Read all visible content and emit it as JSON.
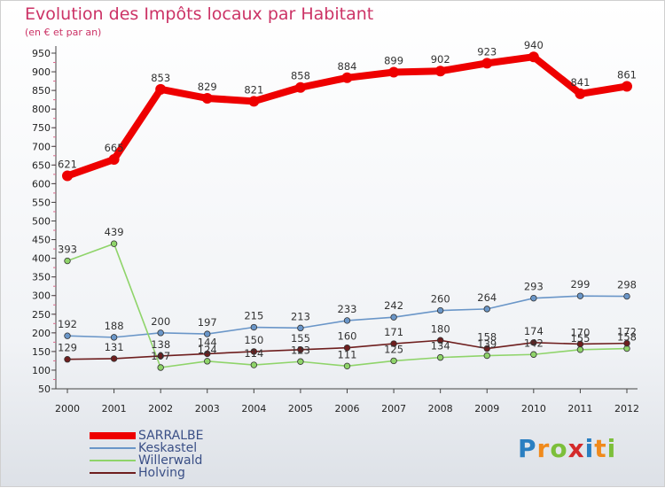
{
  "header": {
    "title": "Evolution des Impôts locaux par Habitant",
    "subtitle": "(en € et par an)"
  },
  "brand": {
    "text": "Proxiti",
    "letters": [
      "P",
      "r",
      "o",
      "x",
      "i",
      "t",
      "i"
    ],
    "letter_colors": [
      "#2a7fc1",
      "#f08a1c",
      "#7cbf3a",
      "#d42a2a",
      "#2a7fc1",
      "#f08a1c",
      "#7cbf3a"
    ]
  },
  "chart_data": {
    "type": "line",
    "title": "Evolution des Impôts locaux par Habitant",
    "subtitle": "(en € et par an)",
    "xlabel": "",
    "ylabel": "",
    "x": [
      "2000",
      "2001",
      "2002",
      "2003",
      "2004",
      "2005",
      "2006",
      "2007",
      "2008",
      "2009",
      "2010",
      "2011",
      "2012"
    ],
    "ylim": [
      50,
      950
    ],
    "yticks": [
      50,
      100,
      150,
      200,
      250,
      300,
      350,
      400,
      450,
      500,
      550,
      600,
      650,
      700,
      750,
      800,
      850,
      900,
      950
    ],
    "grid": false,
    "legend_position": "bottom-left",
    "series": [
      {
        "name": "SARRALBE",
        "color": "#ee0000",
        "width": "thick",
        "values": [
          621,
          665,
          853,
          829,
          821,
          858,
          884,
          899,
          902,
          923,
          940,
          841,
          861
        ],
        "labels": [
          "621",
          "665",
          "853",
          "829",
          "821",
          "858",
          "884",
          "899",
          "902",
          "923",
          "940",
          "841",
          "861"
        ]
      },
      {
        "name": "Keskastel",
        "color": "#6a96c8",
        "width": "thin",
        "values": [
          192,
          188,
          200,
          197,
          215,
          213,
          233,
          242,
          260,
          264,
          293,
          299,
          298
        ],
        "labels": [
          "192",
          "188",
          "200",
          "197",
          "215",
          "213",
          "233",
          "242",
          "260",
          "264",
          "293",
          "299",
          "298"
        ]
      },
      {
        "name": "Willerwald",
        "color": "#8fd46a",
        "width": "thin",
        "values": [
          393,
          439,
          107,
          124,
          114,
          123,
          111,
          125,
          134,
          139,
          142,
          155,
          158
        ],
        "labels": [
          "393",
          "439",
          "107",
          "124",
          "114",
          "123",
          "111",
          "125",
          "134",
          "139",
          "142",
          "155",
          "158"
        ]
      },
      {
        "name": "Holving",
        "color": "#6e1e1e",
        "width": "thin",
        "values": [
          129,
          131,
          138,
          144,
          150,
          155,
          160,
          171,
          180,
          158,
          174,
          170,
          172
        ],
        "labels": [
          "129",
          "131",
          "138",
          "144",
          "150",
          "155",
          "160",
          "171",
          "180",
          "158",
          "174",
          "170",
          "172"
        ]
      }
    ]
  }
}
